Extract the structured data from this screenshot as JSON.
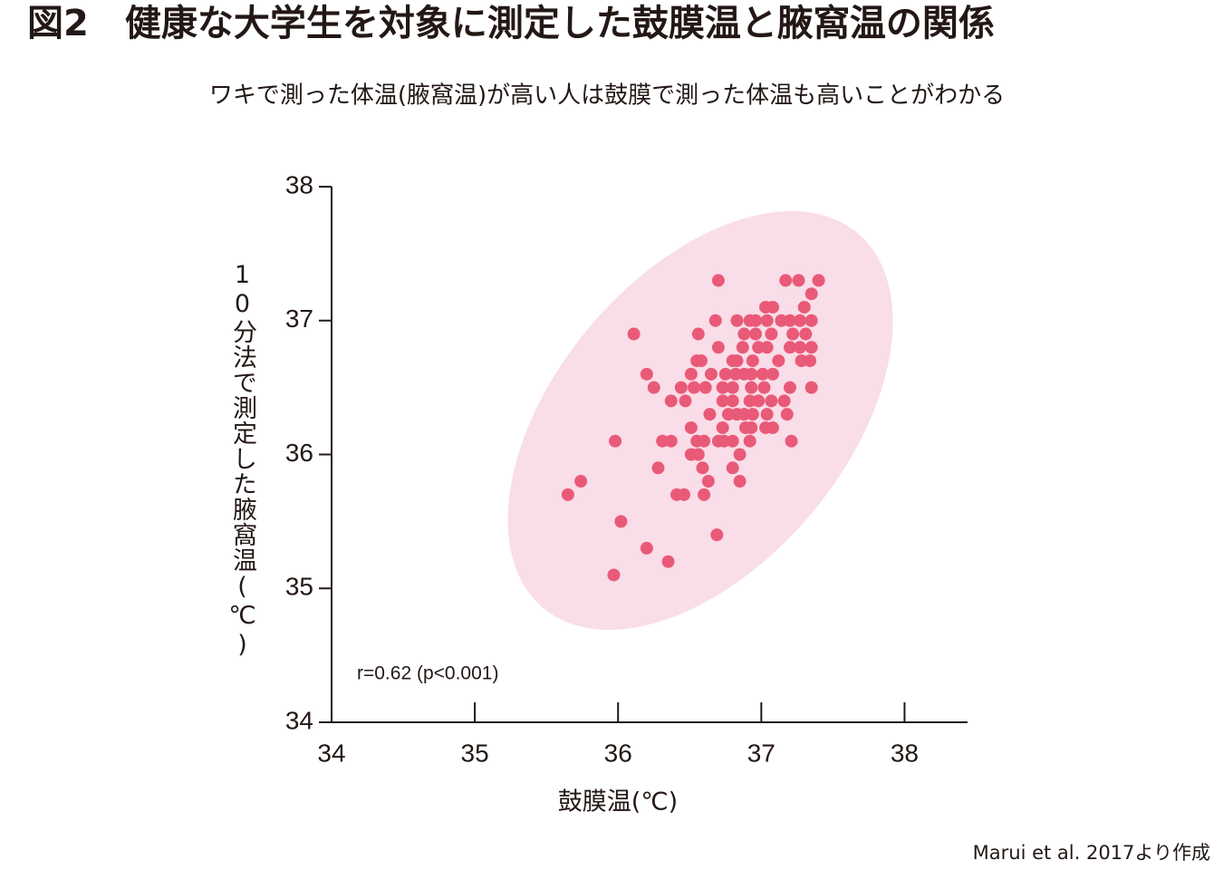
{
  "chart_data": {
    "type": "scatter",
    "title": "図2　健康な大学生を対象に測定した鼓膜温と腋窩温の関係",
    "subtitle": "ワキで測った体温(腋窩温)が高い人は鼓膜で測った体温も高いことがわかる",
    "x_label": "鼓膜温(℃)",
    "y_label": "10分法で測定した腋窩温(℃)",
    "annotation": "r=0.62 (p<0.001)",
    "source": "Marui et al. 2017より作成",
    "color": "#e95a78",
    "xlim": [
      34,
      38.44
    ],
    "xticks": [
      34,
      35,
      36,
      37,
      38
    ],
    "ylim": [
      34,
      38
    ],
    "yticks": [
      34,
      35,
      36,
      37,
      38
    ],
    "x": [
      36.7,
      37.17,
      37.26,
      37.4,
      37.35,
      37.08,
      37.3,
      37.03,
      36.68,
      36.83,
      36.92,
      36.96,
      37.04,
      37.14,
      37.2,
      37.27,
      37.35,
      36.11,
      36.56,
      36.88,
      36.96,
      37.07,
      37.22,
      37.31,
      36.7,
      36.87,
      36.98,
      37.04,
      37.2,
      37.27,
      37.35,
      36.58,
      36.55,
      36.8,
      36.83,
      36.94,
      37.12,
      37.28,
      37.34,
      36.2,
      36.51,
      36.65,
      36.75,
      36.82,
      36.88,
      36.93,
      37.01,
      37.08,
      36.25,
      36.44,
      36.53,
      36.61,
      36.73,
      36.8,
      36.93,
      37.02,
      37.2,
      37.35,
      36.37,
      36.47,
      36.73,
      36.8,
      36.92,
      36.98,
      37.07,
      37.16,
      36.64,
      36.77,
      36.83,
      36.88,
      36.94,
      37.04,
      37.18,
      36.51,
      36.73,
      36.89,
      36.93,
      37.03,
      37.08,
      35.98,
      36.31,
      36.37,
      36.55,
      36.6,
      36.7,
      36.74,
      36.8,
      36.92,
      37.21,
      36.51,
      36.56,
      36.85,
      36.28,
      36.59,
      36.8,
      35.74,
      36.63,
      36.85,
      35.65,
      36.41,
      36.46,
      36.6,
      36.02,
      36.69,
      36.2,
      36.35,
      35.97
    ],
    "values": [
      37.3,
      37.3,
      37.3,
      37.3,
      37.2,
      37.1,
      37.1,
      37.1,
      37.0,
      37.0,
      37.0,
      37.0,
      37.0,
      37.0,
      37.0,
      37.0,
      37.0,
      36.9,
      36.9,
      36.9,
      36.9,
      36.9,
      36.9,
      36.9,
      36.8,
      36.8,
      36.8,
      36.8,
      36.8,
      36.8,
      36.8,
      36.7,
      36.7,
      36.7,
      36.7,
      36.7,
      36.7,
      36.7,
      36.7,
      36.6,
      36.6,
      36.6,
      36.6,
      36.6,
      36.6,
      36.6,
      36.6,
      36.6,
      36.5,
      36.5,
      36.5,
      36.5,
      36.5,
      36.5,
      36.5,
      36.5,
      36.5,
      36.5,
      36.4,
      36.4,
      36.4,
      36.4,
      36.4,
      36.4,
      36.4,
      36.4,
      36.3,
      36.3,
      36.3,
      36.3,
      36.3,
      36.3,
      36.3,
      36.2,
      36.2,
      36.2,
      36.2,
      36.2,
      36.2,
      36.1,
      36.1,
      36.1,
      36.1,
      36.1,
      36.1,
      36.1,
      36.1,
      36.1,
      36.1,
      36.0,
      36.0,
      36.0,
      35.9,
      35.9,
      35.9,
      35.8,
      35.8,
      35.8,
      35.7,
      35.7,
      35.7,
      35.7,
      35.5,
      35.4,
      35.3,
      35.2,
      35.1
    ]
  }
}
